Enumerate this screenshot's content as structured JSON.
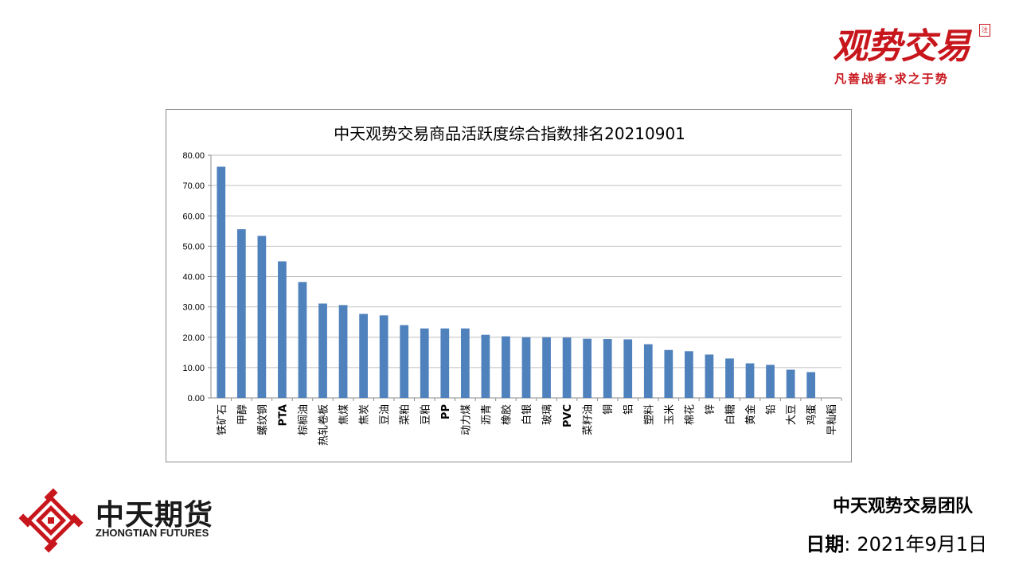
{
  "brand": {
    "title": "观势交易",
    "seal": "注",
    "slogan": "凡善战者·求之于势"
  },
  "company": {
    "name_cn": "中天期货",
    "name_en": "ZHONGTIAN FUTURES"
  },
  "footer": {
    "team": "中天观势交易团队",
    "date_label": "日期",
    "date_sep": ":",
    "date_value": "2021年9月1日"
  },
  "colors": {
    "bar": "#4f81bd",
    "brand_red": "#c8161d",
    "grid": "#bfbfbf"
  },
  "chart_data": {
    "type": "bar",
    "title": "中天观势交易商品活跃度综合指数排名20210901",
    "xlabel": "",
    "ylabel": "",
    "ylim": [
      0,
      80
    ],
    "yticks": [
      "0.00",
      "10.00",
      "20.00",
      "30.00",
      "40.00",
      "50.00",
      "60.00",
      "70.00",
      "80.00"
    ],
    "grid": true,
    "legend": "none",
    "categories": [
      "铁矿石",
      "甲醇",
      "螺纹钢",
      "PTA",
      "棕榈油",
      "热轧卷板",
      "焦煤",
      "焦炭",
      "豆油",
      "菜粕",
      "豆粕",
      "PP",
      "动力煤",
      "沥青",
      "橡胶",
      "白银",
      "玻璃",
      "PVC",
      "菜籽油",
      "铜",
      "铝",
      "塑料",
      "玉米",
      "棉花",
      "锌",
      "白糖",
      "黄金",
      "铅",
      "大豆",
      "鸡蛋",
      "早籼稻"
    ],
    "values": [
      76.2,
      55.6,
      53.4,
      45.0,
      38.2,
      31.1,
      30.6,
      27.7,
      27.2,
      24.0,
      22.9,
      22.9,
      22.9,
      20.8,
      20.3,
      20.0,
      20.0,
      19.9,
      19.5,
      19.4,
      19.3,
      17.7,
      15.8,
      15.4,
      14.3,
      13.0,
      11.4,
      10.9,
      9.3,
      8.5,
      0.0
    ]
  }
}
